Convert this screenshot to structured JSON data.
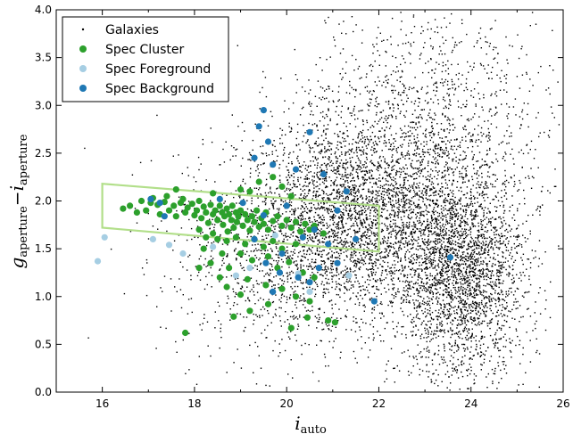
{
  "chart_data": {
    "type": "scatter",
    "title": "",
    "xlabel": {
      "base": "i",
      "sub": "auto"
    },
    "ylabel": {
      "base1": "g",
      "sub1": "aperture",
      "dash": "−",
      "base2": "i",
      "sub2": "aperture"
    },
    "xlim": [
      15,
      26
    ],
    "ylim": [
      0.0,
      4.0
    ],
    "xticks": [
      16,
      18,
      20,
      22,
      24,
      26
    ],
    "yticks": [
      0.0,
      0.5,
      1.0,
      1.5,
      2.0,
      2.5,
      3.0,
      3.5,
      4.0
    ],
    "ytick_labels": [
      "0.0",
      "0.5",
      "1.0",
      "1.5",
      "2.0",
      "2.5",
      "3.0",
      "3.5",
      "4.0"
    ],
    "grid": false,
    "legend_position": "top-left",
    "legend": [
      {
        "label": "Galaxies",
        "marker": "dot",
        "color": "#000000"
      },
      {
        "label": "Spec Cluster",
        "marker": "circle",
        "color": "#2ca02c"
      },
      {
        "label": "Spec Foreground",
        "marker": "circle",
        "color": "#a6cee3"
      },
      {
        "label": "Spec Background",
        "marker": "circle",
        "color": "#1f78b4"
      }
    ],
    "selection_box": {
      "color": "#b2df8a",
      "vertices": [
        [
          16.0,
          2.18
        ],
        [
          22.0,
          1.95
        ],
        [
          22.0,
          1.47
        ],
        [
          16.0,
          1.72
        ]
      ]
    },
    "series": [
      {
        "name": "Galaxies",
        "marker": "dot",
        "color": "#000000",
        "clusters": [
          {
            "cx": 21.4,
            "cy": 1.85,
            "sx": 1.25,
            "sy": 0.5,
            "n": 2600
          },
          {
            "cx": 23.8,
            "cy": 1.2,
            "sx": 0.7,
            "sy": 0.55,
            "n": 2400
          },
          {
            "cx": 22.6,
            "cy": 2.35,
            "sx": 1.3,
            "sy": 0.75,
            "n": 1300
          },
          {
            "cx": 20.0,
            "cy": 1.4,
            "sx": 1.3,
            "sy": 0.55,
            "n": 900
          },
          {
            "cx": 23.3,
            "cy": 3.1,
            "sx": 1.4,
            "sy": 0.6,
            "n": 450
          }
        ]
      },
      {
        "name": "Spec Cluster",
        "marker": "circle",
        "color": "#2ca02c",
        "points": [
          [
            16.45,
            1.92
          ],
          [
            16.6,
            1.95
          ],
          [
            16.75,
            1.88
          ],
          [
            16.85,
            2.0
          ],
          [
            16.95,
            1.9
          ],
          [
            17.05,
            1.98
          ],
          [
            17.1,
            2.03
          ],
          [
            17.2,
            1.96
          ],
          [
            17.25,
            1.86
          ],
          [
            17.35,
            1.99
          ],
          [
            17.4,
            2.05
          ],
          [
            17.45,
            1.9
          ],
          [
            17.55,
            1.95
          ],
          [
            17.6,
            1.84
          ],
          [
            17.7,
            1.98
          ],
          [
            17.75,
            2.02
          ],
          [
            17.8,
            1.88
          ],
          [
            17.85,
            1.93
          ],
          [
            17.95,
            1.97
          ],
          [
            18.0,
            1.85
          ],
          [
            18.05,
            1.9
          ],
          [
            18.1,
            2.0
          ],
          [
            18.15,
            1.82
          ],
          [
            18.2,
            1.94
          ],
          [
            18.25,
            1.88
          ],
          [
            18.3,
            1.77
          ],
          [
            18.35,
            1.96
          ],
          [
            18.4,
            1.86
          ],
          [
            18.45,
            1.9
          ],
          [
            18.5,
            1.8
          ],
          [
            18.55,
            1.95
          ],
          [
            18.6,
            1.88
          ],
          [
            18.62,
            1.75
          ],
          [
            18.65,
            1.84
          ],
          [
            18.7,
            1.92
          ],
          [
            18.72,
            1.68
          ],
          [
            18.75,
            1.86
          ],
          [
            18.8,
            1.8
          ],
          [
            18.82,
            1.95
          ],
          [
            18.85,
            1.72
          ],
          [
            18.9,
            1.88
          ],
          [
            18.92,
            1.78
          ],
          [
            18.95,
            1.84
          ],
          [
            19.0,
            1.9
          ],
          [
            19.05,
            1.74
          ],
          [
            19.1,
            1.86
          ],
          [
            19.15,
            1.8
          ],
          [
            19.2,
            1.69
          ],
          [
            19.25,
            1.84
          ],
          [
            19.3,
            1.78
          ],
          [
            19.35,
            1.9
          ],
          [
            19.4,
            1.73
          ],
          [
            19.45,
            1.82
          ],
          [
            19.5,
            1.76
          ],
          [
            19.55,
            1.88
          ],
          [
            19.6,
            1.7
          ],
          [
            19.7,
            1.79
          ],
          [
            19.8,
            1.84
          ],
          [
            19.9,
            1.74
          ],
          [
            20.0,
            1.8
          ],
          [
            20.1,
            1.72
          ],
          [
            20.2,
            1.78
          ],
          [
            20.3,
            1.68
          ],
          [
            20.4,
            1.76
          ],
          [
            20.5,
            1.7
          ],
          [
            20.6,
            1.74
          ],
          [
            20.8,
            1.66
          ],
          [
            18.1,
            1.7
          ],
          [
            18.25,
            1.62
          ],
          [
            18.4,
            1.66
          ],
          [
            18.5,
            1.6
          ],
          [
            18.7,
            1.58
          ],
          [
            18.9,
            1.62
          ],
          [
            19.1,
            1.55
          ],
          [
            19.3,
            1.6
          ],
          [
            19.5,
            1.52
          ],
          [
            19.7,
            1.58
          ],
          [
            19.9,
            1.5
          ],
          [
            20.2,
            1.55
          ],
          [
            18.2,
            1.5
          ],
          [
            18.6,
            1.45
          ],
          [
            18.35,
            1.35
          ],
          [
            18.75,
            1.3
          ],
          [
            19.0,
            1.45
          ],
          [
            19.25,
            1.38
          ],
          [
            19.6,
            1.42
          ],
          [
            19.8,
            1.3
          ],
          [
            20.05,
            1.36
          ],
          [
            20.35,
            1.25
          ],
          [
            20.6,
            1.2
          ],
          [
            18.1,
            1.3
          ],
          [
            18.55,
            1.2
          ],
          [
            19.15,
            1.18
          ],
          [
            19.55,
            1.12
          ],
          [
            19.9,
            1.08
          ],
          [
            20.2,
            1.0
          ],
          [
            20.5,
            0.95
          ],
          [
            19.0,
            1.02
          ],
          [
            18.7,
            1.1
          ],
          [
            19.4,
            2.2
          ],
          [
            19.2,
            2.1
          ],
          [
            19.7,
            2.25
          ],
          [
            20.1,
            2.05
          ],
          [
            19.9,
            2.15
          ],
          [
            18.4,
            2.08
          ],
          [
            17.6,
            2.12
          ],
          [
            19.0,
            2.12
          ],
          [
            19.2,
            0.85
          ],
          [
            19.6,
            0.92
          ],
          [
            20.1,
            0.67
          ],
          [
            20.45,
            0.78
          ],
          [
            20.9,
            0.75
          ],
          [
            21.05,
            0.73
          ],
          [
            18.85,
            0.79
          ],
          [
            17.8,
            0.62
          ]
        ]
      },
      {
        "name": "Spec Foreground",
        "marker": "circle",
        "color": "#a6cee3",
        "points": [
          [
            15.9,
            1.37
          ],
          [
            16.05,
            1.62
          ],
          [
            17.1,
            1.6
          ],
          [
            17.45,
            1.54
          ],
          [
            17.75,
            1.45
          ],
          [
            18.4,
            1.52
          ],
          [
            18.9,
            1.22
          ],
          [
            19.2,
            1.3
          ],
          [
            19.75,
            1.64
          ],
          [
            20.25,
            1.24
          ],
          [
            20.5,
            1.05
          ],
          [
            21.35,
            1.22
          ]
        ]
      },
      {
        "name": "Spec Background",
        "marker": "circle",
        "color": "#1f78b4",
        "points": [
          [
            19.5,
            2.95
          ],
          [
            19.4,
            2.78
          ],
          [
            19.6,
            2.62
          ],
          [
            19.3,
            2.45
          ],
          [
            19.7,
            2.38
          ],
          [
            20.2,
            2.33
          ],
          [
            20.5,
            2.72
          ],
          [
            20.8,
            2.28
          ],
          [
            21.3,
            2.1
          ],
          [
            21.1,
            1.9
          ],
          [
            20.6,
            1.7
          ],
          [
            20.9,
            1.55
          ],
          [
            21.5,
            1.6
          ],
          [
            21.1,
            1.35
          ],
          [
            20.7,
            1.3
          ],
          [
            20.5,
            1.15
          ],
          [
            19.9,
            1.45
          ],
          [
            19.55,
            1.35
          ],
          [
            19.7,
            1.05
          ],
          [
            20.25,
            1.2
          ],
          [
            21.9,
            0.95
          ],
          [
            23.55,
            1.41
          ],
          [
            18.55,
            2.02
          ],
          [
            19.05,
            1.98
          ],
          [
            17.25,
            1.98
          ],
          [
            17.05,
            2.02
          ],
          [
            17.35,
            1.84
          ],
          [
            19.5,
            1.85
          ],
          [
            20.0,
            1.95
          ],
          [
            20.35,
            1.62
          ],
          [
            19.3,
            1.6
          ],
          [
            19.85,
            1.25
          ]
        ]
      }
    ]
  }
}
